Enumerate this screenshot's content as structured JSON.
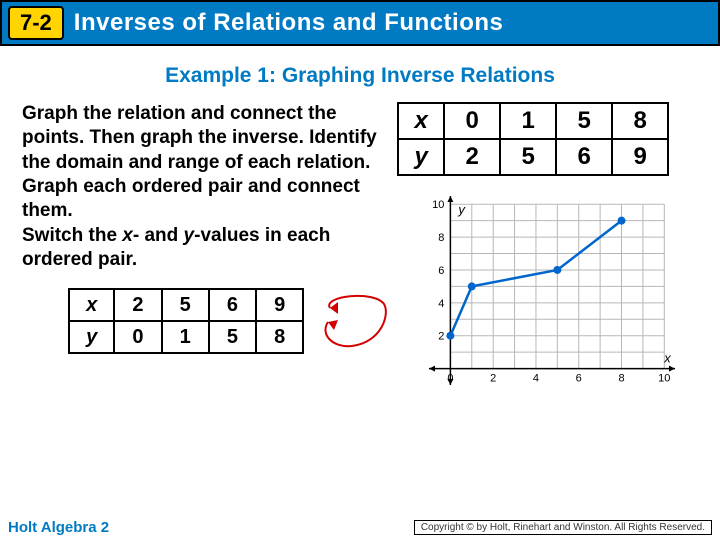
{
  "header": {
    "section": "7-2",
    "title": "Inverses of Relations and Functions"
  },
  "subtitle": "Example 1: Graphing Inverse Relations",
  "instructions": {
    "line1": "Graph the relation and connect the points. Then graph the inverse. Identify the domain and range of each relation.",
    "line2": "Graph each ordered pair and connect them.",
    "line3_pre": "Switch the ",
    "line3_x": "x",
    "line3_mid": "- and ",
    "line3_y": "y",
    "line3_post": "-values in each ordered pair."
  },
  "table_original": {
    "x_label": "x",
    "y_label": "y",
    "x": [
      "0",
      "1",
      "5",
      "8"
    ],
    "y": [
      "2",
      "5",
      "6",
      "9"
    ]
  },
  "table_inverse": {
    "x_label": "x",
    "y_label": "y",
    "x": [
      "2",
      "5",
      "6",
      "9"
    ],
    "y": [
      "0",
      "1",
      "5",
      "8"
    ]
  },
  "arrow": {
    "color": "#d40000",
    "stroke_width": 2
  },
  "chart": {
    "type": "line",
    "xlim": [
      -1,
      10.5
    ],
    "ylim": [
      -1,
      10.5
    ],
    "xtick_step": 2,
    "ytick_step": 2,
    "x_ticks": [
      0,
      2,
      4,
      6,
      8,
      10
    ],
    "y_ticks": [
      2,
      4,
      6,
      8,
      10
    ],
    "x_axis_label": "x",
    "y_axis_label": "y",
    "grid_color": "#b7b7b7",
    "axis_color": "#000000",
    "background_color": "#ffffff",
    "tick_fontsize": 11,
    "axis_label_fontsize": 13,
    "series": {
      "color": "#0066cc",
      "marker_color": "#0066cc",
      "marker_radius": 4,
      "line_width": 2.5,
      "points": [
        [
          0,
          2
        ],
        [
          1,
          5
        ],
        [
          5,
          6
        ],
        [
          8,
          9
        ]
      ]
    }
  },
  "footer": {
    "book": "Holt Algebra 2",
    "copyright": "Copyright © by Holt, Rinehart and Winston. All Rights Reserved."
  }
}
